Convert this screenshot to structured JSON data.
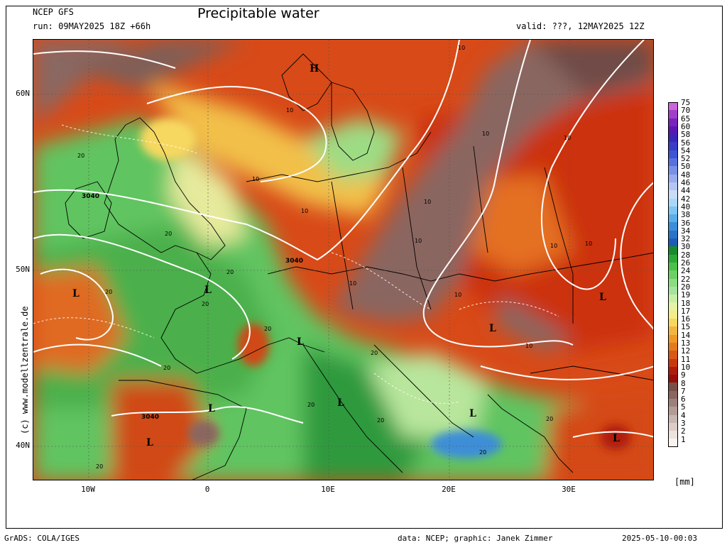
{
  "header": {
    "model": "NCEP GFS",
    "run": "run: 09MAY2025 18Z +66h",
    "title": "Precipitable water",
    "valid": "valid: ???, 12MAY2025 12Z"
  },
  "axes": {
    "lat_labels": [
      "60N",
      "50N",
      "40N"
    ],
    "lon_labels": [
      "10W",
      "0",
      "10E",
      "20E",
      "30E"
    ]
  },
  "watermark": "(c) www.modellzentrale.de",
  "colorbar": {
    "unit": "[mm]",
    "labels": [
      "75",
      "70",
      "65",
      "60",
      "58",
      "56",
      "54",
      "52",
      "50",
      "48",
      "46",
      "44",
      "42",
      "40",
      "38",
      "36",
      "34",
      "32",
      "30",
      "28",
      "26",
      "24",
      "22",
      "20",
      "19",
      "18",
      "17",
      "16",
      "15",
      "14",
      "13",
      "12",
      "11",
      "10",
      "9",
      "8",
      "7",
      "6",
      "5",
      "4",
      "3",
      "2",
      "1"
    ],
    "colors": [
      "#cc66dd",
      "#a040c8",
      "#7a22c0",
      "#5a18b0",
      "#3c26b8",
      "#3a3cc8",
      "#3d55d4",
      "#5870de",
      "#7890e6",
      "#98acee",
      "#b4c4f4",
      "#c8dcf8",
      "#a8d8f6",
      "#80c4f2",
      "#5aaee6",
      "#3c8ed8",
      "#2a74c8",
      "#1e5cb8",
      "#1a8a2e",
      "#2ea83a",
      "#4cc04a",
      "#6cd064",
      "#8cdc80",
      "#a4e49c",
      "#c8eea8",
      "#e6f2a4",
      "#f6ec88",
      "#f6d860",
      "#f2b640",
      "#ee9828",
      "#e47a20",
      "#d85818",
      "#c83810",
      "#b01c0c",
      "#961008",
      "#785048",
      "#8a6660",
      "#9e807a",
      "#b49c96",
      "#c8b6b0",
      "#dccdc8",
      "#ece2de",
      "#f8f2f0"
    ]
  },
  "map_labels": {
    "pressure_centers": [
      "H",
      "L",
      "L",
      "L",
      "L",
      "L",
      "L",
      "L",
      "L",
      "L",
      "L"
    ],
    "contour_values": [
      "3040",
      "3040",
      "3040",
      "10",
      "10",
      "10",
      "10",
      "10",
      "10",
      "10",
      "10",
      "10",
      "10",
      "10",
      "10",
      "10",
      "20",
      "20",
      "20",
      "20",
      "20",
      "20",
      "20",
      "20",
      "20",
      "20",
      "20",
      "20",
      "20"
    ]
  },
  "footer": {
    "left": "GrADS: COLA/IGES",
    "credit": "data: NCEP; graphic: Janek Zimmer",
    "stamp": "2025-05-10-00:03"
  }
}
